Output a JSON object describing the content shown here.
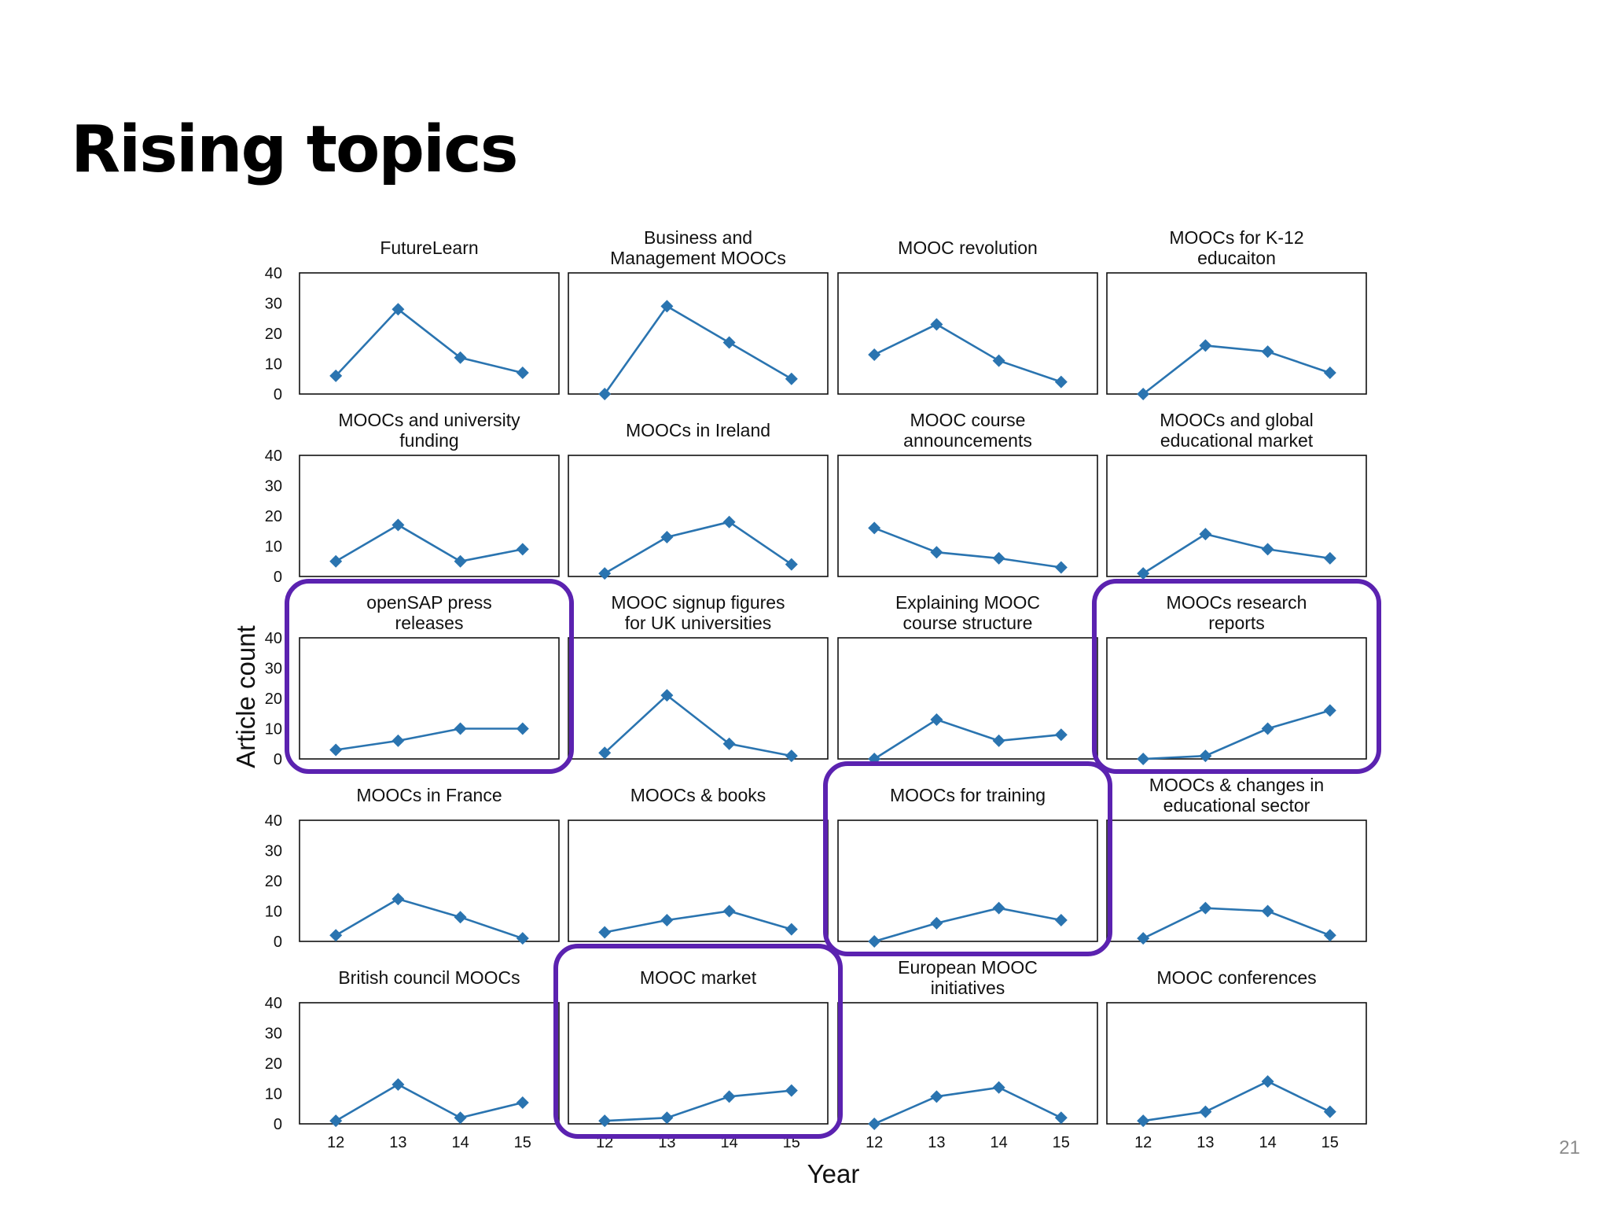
{
  "slide": {
    "title": "Rising topics",
    "page_number": "21"
  },
  "colors": {
    "series": "#2a74b0",
    "highlight": "#5b22b0",
    "frame": "#111111"
  },
  "chart_data": {
    "type": "line",
    "layout": "small-multiples grid, 5 rows x 4 columns",
    "xlabel": "Year",
    "ylabel": "Article count",
    "x": [
      12,
      13,
      14,
      15
    ],
    "x_tick_labels": [
      "12",
      "13",
      "14",
      "15"
    ],
    "ylim": [
      0,
      40
    ],
    "y_ticks": [
      0,
      10,
      20,
      30,
      40
    ],
    "marker": "diamond",
    "grid": false,
    "panels": [
      {
        "title": [
          "FutureLearn"
        ],
        "values": [
          6,
          28,
          12,
          7
        ],
        "highlight": false
      },
      {
        "title": [
          "Business and",
          "Management MOOCs"
        ],
        "values": [
          0,
          29,
          17,
          5
        ],
        "highlight": false
      },
      {
        "title": [
          "MOOC revolution"
        ],
        "values": [
          13,
          23,
          11,
          4
        ],
        "highlight": false
      },
      {
        "title": [
          "MOOCs for K-12",
          "educaiton"
        ],
        "values": [
          0,
          16,
          14,
          7
        ],
        "highlight": false
      },
      {
        "title": [
          "MOOCs and university",
          "funding"
        ],
        "values": [
          5,
          17,
          5,
          9
        ],
        "highlight": false
      },
      {
        "title": [
          "MOOCs in Ireland"
        ],
        "values": [
          1,
          13,
          18,
          4
        ],
        "highlight": false
      },
      {
        "title": [
          "MOOC course",
          "announcements"
        ],
        "values": [
          16,
          8,
          6,
          3
        ],
        "highlight": false
      },
      {
        "title": [
          "MOOCs and global",
          "educational market"
        ],
        "values": [
          1,
          14,
          9,
          6
        ],
        "highlight": false
      },
      {
        "title": [
          "openSAP press",
          "releases"
        ],
        "values": [
          3,
          6,
          10,
          10
        ],
        "highlight": true
      },
      {
        "title": [
          "MOOC signup figures",
          "for UK universities"
        ],
        "values": [
          2,
          21,
          5,
          1
        ],
        "highlight": false
      },
      {
        "title": [
          "Explaining MOOC",
          "course structure"
        ],
        "values": [
          0,
          13,
          6,
          8
        ],
        "highlight": false
      },
      {
        "title": [
          "MOOCs research",
          "reports"
        ],
        "values": [
          0,
          1,
          10,
          16
        ],
        "highlight": true
      },
      {
        "title": [
          "MOOCs in France"
        ],
        "values": [
          2,
          14,
          8,
          1
        ],
        "highlight": false
      },
      {
        "title": [
          "MOOCs & books"
        ],
        "values": [
          3,
          7,
          10,
          4
        ],
        "highlight": false
      },
      {
        "title": [
          "MOOCs for training"
        ],
        "values": [
          0,
          6,
          11,
          7
        ],
        "highlight": true
      },
      {
        "title": [
          "MOOCs & changes in",
          "educational sector"
        ],
        "values": [
          1,
          11,
          10,
          2
        ],
        "highlight": false
      },
      {
        "title": [
          "British council MOOCs"
        ],
        "values": [
          1,
          13,
          2,
          7
        ],
        "highlight": false
      },
      {
        "title": [
          "MOOC market"
        ],
        "values": [
          1,
          2,
          9,
          11
        ],
        "highlight": true
      },
      {
        "title": [
          "European MOOC",
          "initiatives"
        ],
        "values": [
          0,
          9,
          12,
          2
        ],
        "highlight": false
      },
      {
        "title": [
          "MOOC conferences"
        ],
        "values": [
          1,
          4,
          14,
          4
        ],
        "highlight": false
      }
    ]
  }
}
